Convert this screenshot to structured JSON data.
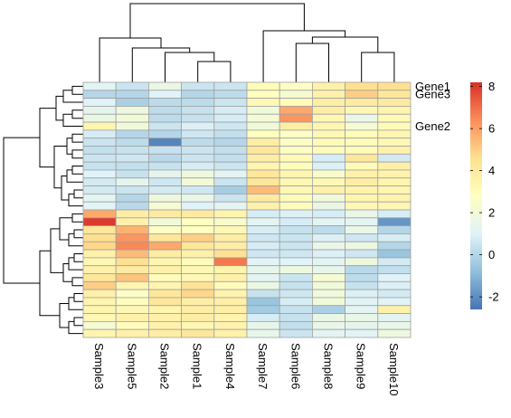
{
  "chart_data": {
    "type": "heatmap",
    "columns": [
      "Sample3",
      "Sample5",
      "Sample2",
      "Sample1",
      "Sample4",
      "Sample7",
      "Sample6",
      "Sample8",
      "Sample9",
      "Sample10"
    ],
    "row_labels": [
      {
        "row": 0,
        "text": "Gene1"
      },
      {
        "row": 1,
        "text": "Gene3"
      },
      {
        "row": 5,
        "text": "Gene2"
      }
    ],
    "values": [
      [
        1.2,
        0.5,
        1.6,
        0.5,
        0.5,
        3.0,
        2.6,
        3.6,
        4.6,
        4.6
      ],
      [
        0.0,
        0.0,
        1.0,
        0.0,
        0.2,
        2.8,
        2.2,
        3.6,
        5.0,
        4.2
      ],
      [
        1.0,
        -0.2,
        0.2,
        0.2,
        0.5,
        3.2,
        3.0,
        3.8,
        4.0,
        4.0
      ],
      [
        1.3,
        1.8,
        0.2,
        0.4,
        0.8,
        2.0,
        5.8,
        3.8,
        3.2,
        3.4
      ],
      [
        1.6,
        2.0,
        0.2,
        0.4,
        0.8,
        2.1,
        6.2,
        3.2,
        1.5,
        3.1
      ],
      [
        3.4,
        2.0,
        0.5,
        0.9,
        0.6,
        2.0,
        3.8,
        3.3,
        2.2,
        3.0
      ],
      [
        0.8,
        0.0,
        0.0,
        0.6,
        0.3,
        2.8,
        2.6,
        3.2,
        3.0,
        3.3
      ],
      [
        0.5,
        0.2,
        -2.2,
        0.2,
        0.0,
        3.8,
        2.6,
        3.1,
        3.0,
        3.2
      ],
      [
        0.3,
        0.4,
        0.4,
        0.5,
        0.3,
        4.2,
        2.7,
        3.0,
        3.0,
        3.6
      ],
      [
        0.5,
        0.6,
        0.1,
        0.5,
        0.3,
        3.8,
        3.1,
        0.8,
        4.2,
        0.7
      ],
      [
        0.4,
        0.3,
        0.4,
        0.8,
        0.5,
        3.4,
        2.9,
        0.9,
        3.1,
        3.7
      ],
      [
        1.0,
        0.4,
        1.3,
        1.8,
        1.2,
        4.2,
        3.3,
        2.4,
        3.6,
        3.5
      ],
      [
        0.7,
        1.3,
        0.6,
        2.1,
        0.5,
        4.2,
        3.2,
        3.2,
        3.8,
        3.4
      ],
      [
        0.7,
        0.5,
        0.7,
        0.6,
        -0.3,
        5.4,
        3.2,
        3.6,
        3.5,
        3.3
      ],
      [
        1.2,
        0.0,
        1.8,
        1.5,
        0.5,
        4.0,
        2.9,
        2.0,
        3.4,
        3.5
      ],
      [
        1.1,
        0.1,
        2.2,
        1.0,
        1.2,
        3.6,
        2.9,
        1.6,
        3.2,
        3.3
      ],
      [
        5.8,
        3.8,
        4.0,
        4.0,
        3.4,
        0.8,
        0.9,
        0.8,
        1.5,
        0.8
      ],
      [
        8.0,
        3.6,
        2.0,
        2.8,
        2.4,
        1.2,
        0.8,
        1.2,
        1.2,
        -1.8
      ],
      [
        4.2,
        5.6,
        2.6,
        2.8,
        3.2,
        0.8,
        0.4,
        0.2,
        1.5,
        0.0
      ],
      [
        4.6,
        6.2,
        4.2,
        5.0,
        3.8,
        0.6,
        0.5,
        0.9,
        0.6,
        0.8
      ],
      [
        4.8,
        6.5,
        5.8,
        4.2,
        3.8,
        0.8,
        0.5,
        1.5,
        1.7,
        0.0
      ],
      [
        3.6,
        5.4,
        3.9,
        3.6,
        4.5,
        0.6,
        0.6,
        0.9,
        0.6,
        -0.6
      ],
      [
        3.2,
        4.6,
        3.4,
        3.0,
        6.8,
        1.1,
        1.0,
        1.2,
        1.8,
        0.7
      ],
      [
        3.6,
        4.0,
        3.6,
        3.2,
        3.5,
        1.4,
        1.8,
        1.4,
        0.1,
        0.3
      ],
      [
        4.2,
        5.2,
        3.0,
        3.2,
        3.6,
        1.2,
        0.5,
        2.2,
        0.2,
        1.0
      ],
      [
        5.0,
        3.4,
        3.4,
        4.4,
        3.0,
        1.6,
        0.4,
        2.0,
        0.4,
        0.9
      ],
      [
        3.6,
        2.6,
        4.2,
        4.8,
        3.5,
        0.4,
        0.6,
        1.9,
        0.9,
        0.7
      ],
      [
        3.4,
        2.9,
        4.2,
        3.8,
        3.7,
        -0.6,
        0.8,
        2.0,
        1.1,
        1.1
      ],
      [
        3.4,
        3.2,
        3.4,
        3.8,
        3.7,
        -0.4,
        0.4,
        -0.2,
        1.2,
        3.6
      ],
      [
        3.2,
        3.6,
        3.6,
        3.8,
        3.4,
        0.8,
        0.4,
        1.6,
        1.5,
        1.2
      ],
      [
        2.2,
        3.0,
        3.6,
        3.3,
        3.5,
        1.4,
        0.3,
        1.5,
        1.3,
        1.5
      ],
      [
        3.4,
        3.6,
        3.8,
        4.2,
        3.6,
        1.4,
        0.5,
        1.2,
        1.1,
        1.8
      ]
    ],
    "legend": {
      "ticks": [
        8,
        6,
        4,
        2,
        0,
        -2
      ],
      "range": [
        -2.6,
        8.2
      ],
      "placement": "right"
    },
    "colorscale": [
      "#4575b4",
      "#91bfdb",
      "#e0f3f8",
      "#ffffbf",
      "#fee090",
      "#fc8d59",
      "#d73027"
    ],
    "cell_border_color": "#a0a0a0",
    "dendrogram_color": "#000000"
  }
}
